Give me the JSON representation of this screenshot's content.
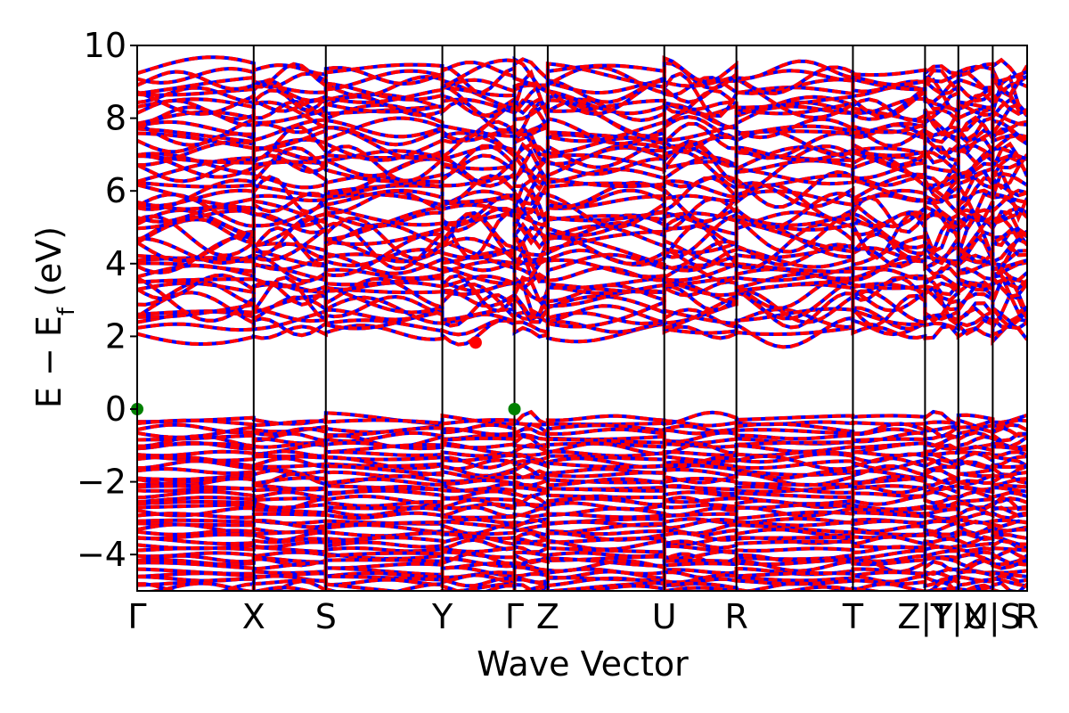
{
  "chart_data": {
    "type": "line",
    "title": "",
    "xlabel": "Wave Vector",
    "ylabel": "E − E_f (eV)",
    "ylabel_parts": {
      "main": "E − E",
      "sub": "f",
      "unit": " (eV)"
    },
    "ylim": [
      -5,
      10
    ],
    "yticks": [
      -4,
      -2,
      0,
      2,
      4,
      6,
      8,
      10
    ],
    "ytick_labels": [
      "−4",
      "−2",
      "0",
      "2",
      "4",
      "6",
      "8",
      "10"
    ],
    "kpoints": [
      {
        "label": "Γ",
        "x": 0.0
      },
      {
        "label": "X",
        "x": 1.05
      },
      {
        "label": "S",
        "x": 1.7
      },
      {
        "label": "Y",
        "x": 2.75
      },
      {
        "label": "Γ",
        "x": 3.4
      },
      {
        "label": "Z",
        "x": 3.7
      },
      {
        "label": "U",
        "x": 4.75
      },
      {
        "label": "R",
        "x": 5.4
      },
      {
        "label": "T",
        "x": 6.45
      },
      {
        "label": "Z|Y",
        "x": 7.1
      },
      {
        "label": "T|X",
        "x": 7.4
      },
      {
        "label": "U|S",
        "x": 7.71
      },
      {
        "label": "R",
        "x": 8.02
      }
    ],
    "xlim": [
      0,
      8.02
    ],
    "series": [
      {
        "color": "#0000ff",
        "style": "solid"
      },
      {
        "color": "#ff0000",
        "style": "dashed"
      }
    ],
    "markers": [
      {
        "label": "VBM",
        "x": 0.0,
        "y": 0.0,
        "color": "#008000"
      },
      {
        "label": "VBM",
        "x": 3.4,
        "y": 0.0,
        "color": "#008000"
      },
      {
        "label": "CBM",
        "x": 3.05,
        "y": 1.83,
        "color": "#ff0000"
      }
    ],
    "grid": false,
    "legend": "none"
  }
}
